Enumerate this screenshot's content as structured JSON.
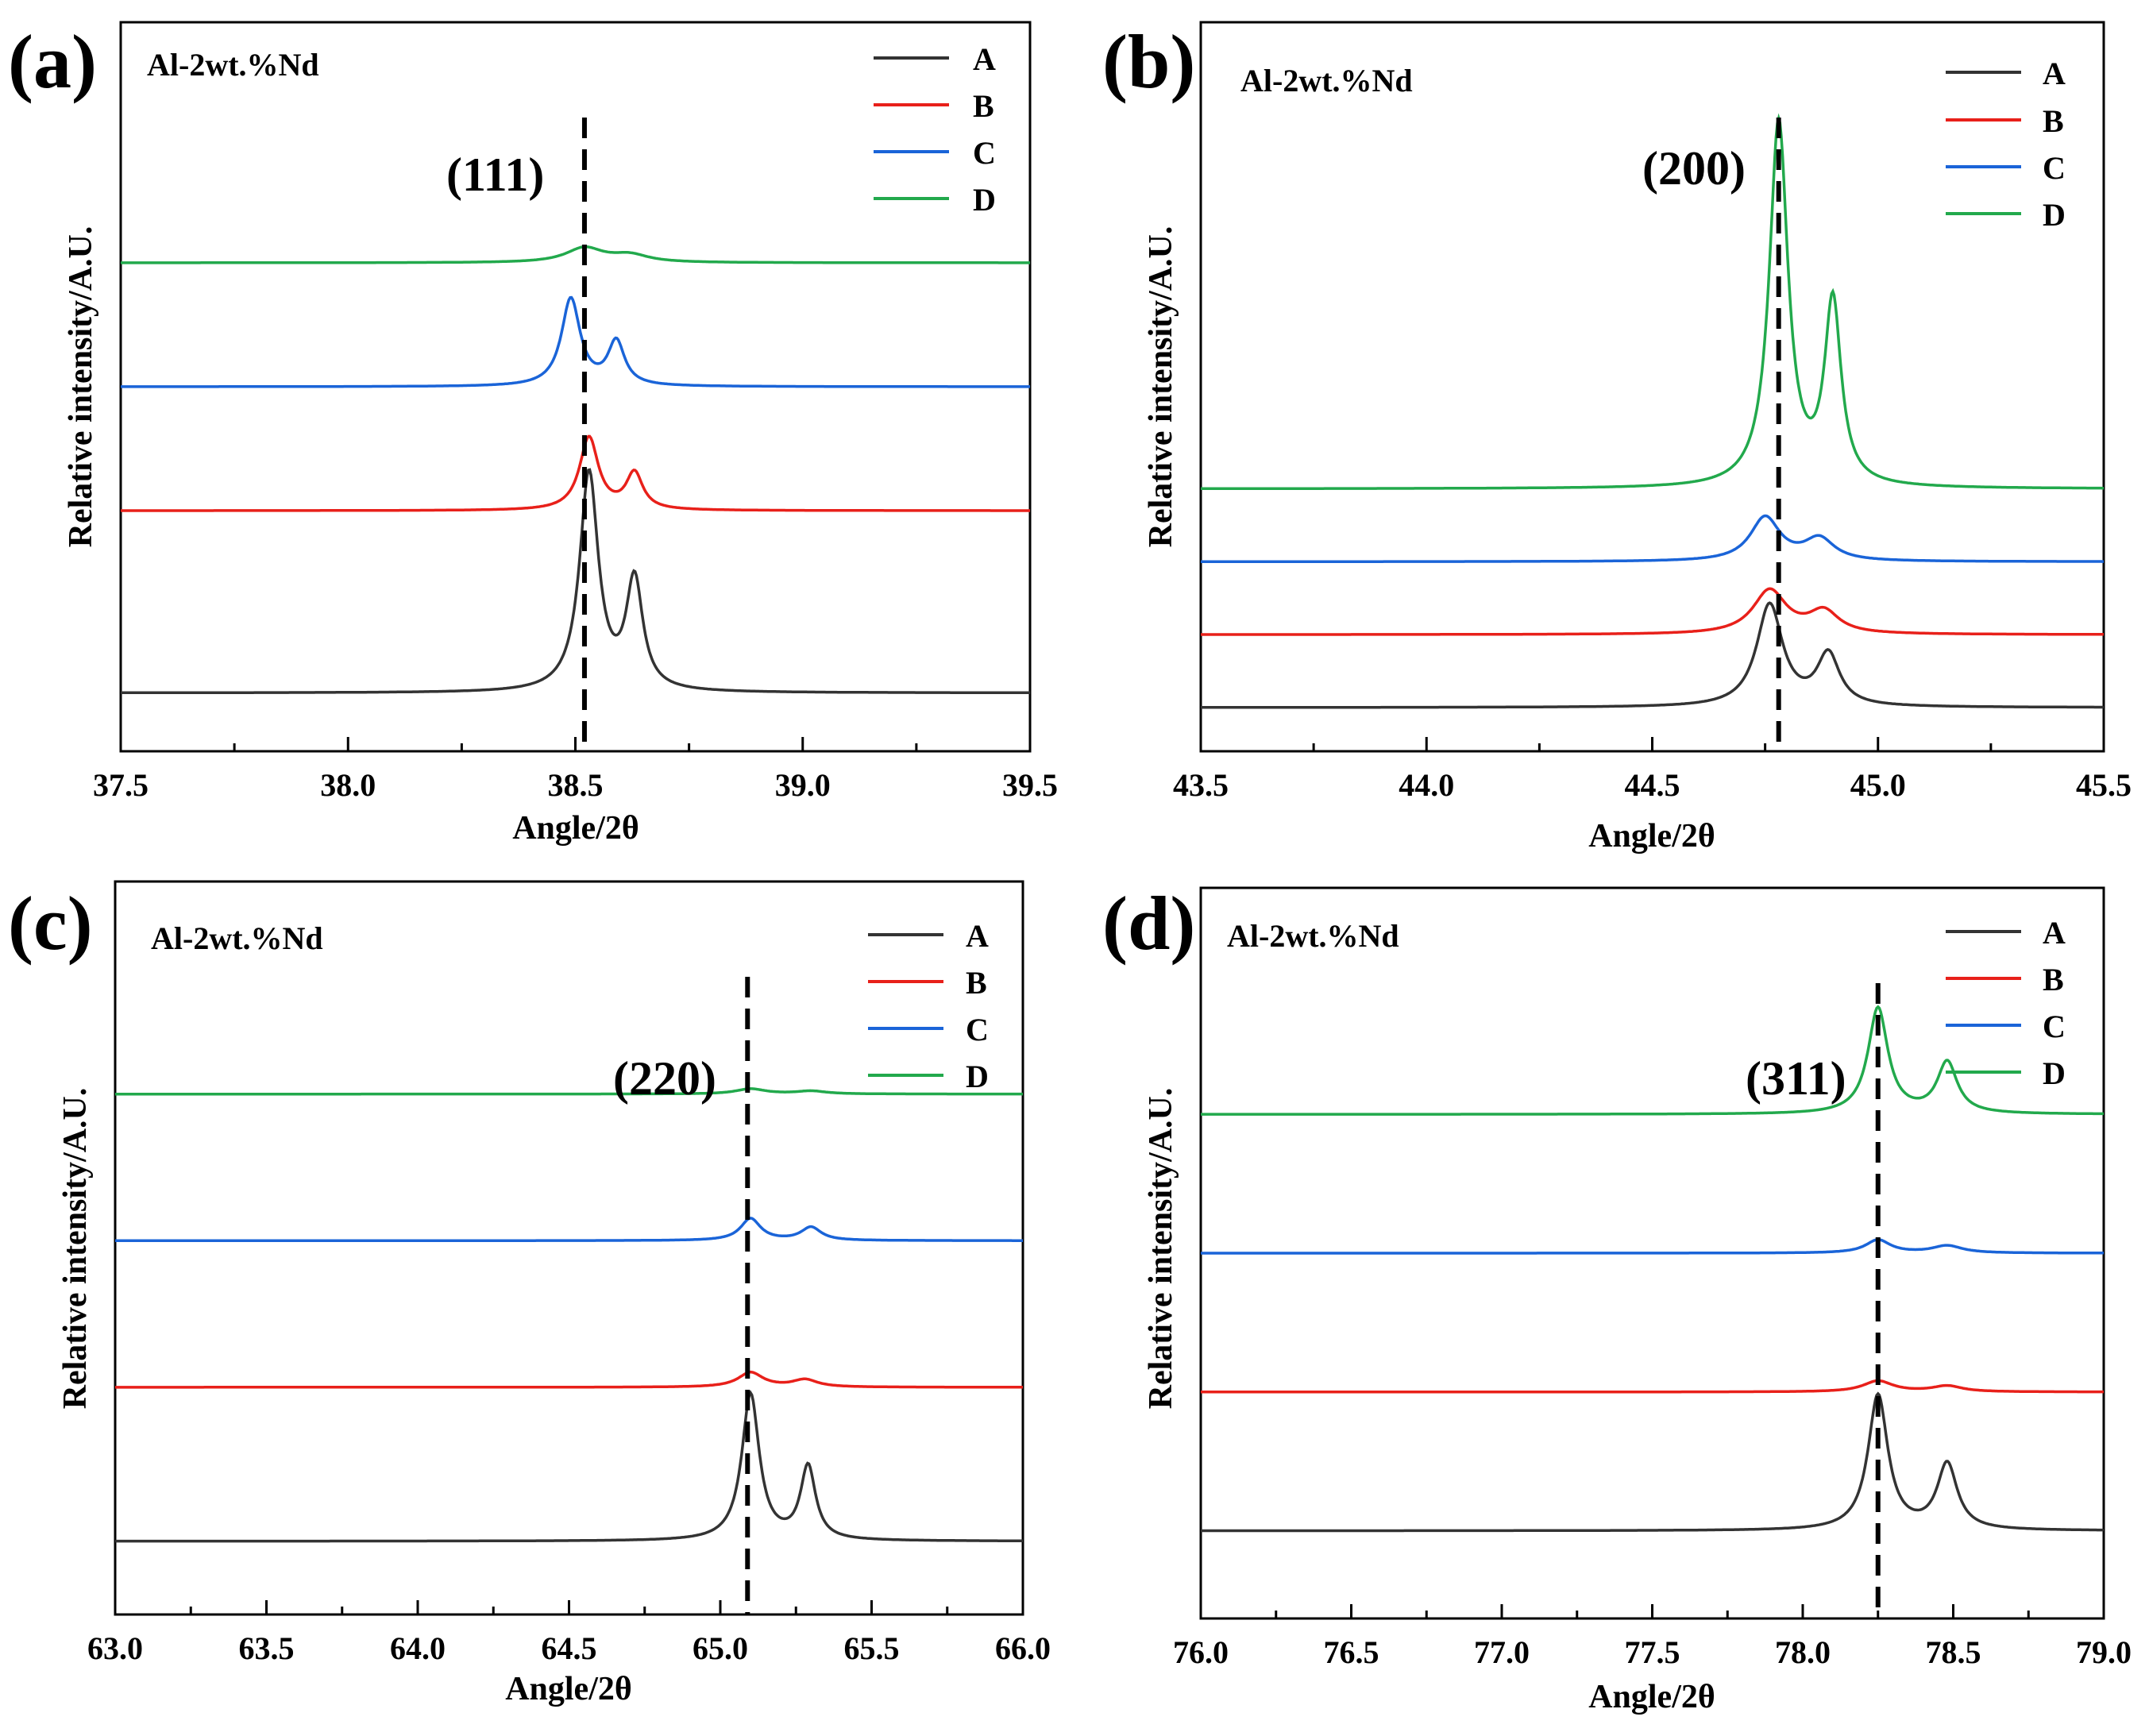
{
  "chart_data": [
    {
      "panel_label": "(a)",
      "type": "line",
      "title": "Al-2wt.%Nd",
      "xlabel": "Angle/2θ",
      "ylabel": "Relative intensity/A.U.",
      "xlim": [
        37.5,
        39.5
      ],
      "ylim": [
        0,
        1.0
      ],
      "x_ticks": [
        "37.5",
        "38.0",
        "38.5",
        "39.0",
        "39.5"
      ],
      "peak_annotation": "(111)",
      "reference_line_x": 38.52,
      "legend_position": "top-right",
      "series": [
        {
          "name": "A",
          "color": "#333333",
          "baseline": 0.08,
          "peaks": [
            [
              38.53,
              0.3,
              0.025
            ],
            [
              38.63,
              0.15,
              0.022
            ]
          ]
        },
        {
          "name": "B",
          "color": "#e8201a",
          "baseline": 0.33,
          "peaks": [
            [
              38.53,
              0.1,
              0.025
            ],
            [
              38.63,
              0.05,
              0.022
            ]
          ]
        },
        {
          "name": "C",
          "color": "#1a64d8",
          "baseline": 0.5,
          "peaks": [
            [
              38.49,
              0.12,
              0.025
            ],
            [
              38.59,
              0.06,
              0.022
            ]
          ]
        },
        {
          "name": "D",
          "color": "#22a94c",
          "baseline": 0.67,
          "peaks": [
            [
              38.52,
              0.02,
              0.05
            ],
            [
              38.62,
              0.01,
              0.05
            ]
          ]
        }
      ]
    },
    {
      "panel_label": "(b)",
      "type": "line",
      "title": "Al-2wt.%Nd",
      "xlabel": "Angle/2θ",
      "ylabel": "Relative intensity/A.U.",
      "xlim": [
        43.5,
        45.5
      ],
      "ylim": [
        0,
        1.0
      ],
      "x_ticks": [
        "43.5",
        "44.0",
        "44.5",
        "45.0",
        "45.5"
      ],
      "peak_annotation": "(200)",
      "reference_line_x": 44.78,
      "legend_position": "top-right",
      "series": [
        {
          "name": "A",
          "color": "#333333",
          "baseline": 0.06,
          "peaks": [
            [
              44.76,
              0.14,
              0.035
            ],
            [
              44.89,
              0.07,
              0.03
            ]
          ]
        },
        {
          "name": "B",
          "color": "#e8201a",
          "baseline": 0.16,
          "peaks": [
            [
              44.76,
              0.06,
              0.045
            ],
            [
              44.88,
              0.03,
              0.04
            ]
          ]
        },
        {
          "name": "C",
          "color": "#1a64d8",
          "baseline": 0.26,
          "peaks": [
            [
              44.75,
              0.06,
              0.04
            ],
            [
              44.87,
              0.03,
              0.04
            ]
          ]
        },
        {
          "name": "D",
          "color": "#22a94c",
          "baseline": 0.36,
          "peaks": [
            [
              44.78,
              0.5,
              0.025
            ],
            [
              44.9,
              0.25,
              0.022
            ]
          ]
        }
      ]
    },
    {
      "panel_label": "(c)",
      "type": "line",
      "title": "Al-2wt.%Nd",
      "xlabel": "Angle/2θ",
      "ylabel": "Relative intensity/A.U.",
      "xlim": [
        63.0,
        66.0
      ],
      "ylim": [
        0,
        1.0
      ],
      "x_ticks": [
        "63.0",
        "63.5",
        "64.0",
        "64.5",
        "65.0",
        "65.5",
        "66.0"
      ],
      "peak_annotation": "(220)",
      "reference_line_x": 65.09,
      "legend_position": "top-right",
      "series": [
        {
          "name": "A",
          "color": "#333333",
          "baseline": 0.1,
          "peaks": [
            [
              65.1,
              0.2,
              0.035
            ],
            [
              65.29,
              0.1,
              0.03
            ]
          ]
        },
        {
          "name": "B",
          "color": "#e8201a",
          "baseline": 0.31,
          "peaks": [
            [
              65.1,
              0.02,
              0.05
            ],
            [
              65.28,
              0.01,
              0.05
            ]
          ]
        },
        {
          "name": "C",
          "color": "#1a64d8",
          "baseline": 0.51,
          "peaks": [
            [
              65.1,
              0.03,
              0.04
            ],
            [
              65.3,
              0.018,
              0.04
            ]
          ]
        },
        {
          "name": "D",
          "color": "#22a94c",
          "baseline": 0.71,
          "peaks": [
            [
              65.1,
              0.007,
              0.06
            ],
            [
              65.3,
              0.004,
              0.06
            ]
          ]
        }
      ]
    },
    {
      "panel_label": "(d)",
      "type": "line",
      "title": "Al-2wt.%Nd",
      "xlabel": "Angle/2θ",
      "ylabel": "Relative intensity/A.U.",
      "xlim": [
        76.0,
        79.0
      ],
      "ylim": [
        0,
        1.0
      ],
      "x_ticks": [
        "76.0",
        "76.5",
        "77.0",
        "77.5",
        "78.0",
        "78.5",
        "79.0"
      ],
      "peak_annotation": "(311)",
      "reference_line_x": 78.25,
      "legend_position": "top-right",
      "series": [
        {
          "name": "A",
          "color": "#333333",
          "baseline": 0.12,
          "peaks": [
            [
              78.25,
              0.185,
              0.04
            ],
            [
              78.48,
              0.09,
              0.04
            ]
          ]
        },
        {
          "name": "B",
          "color": "#e8201a",
          "baseline": 0.31,
          "peaks": [
            [
              78.25,
              0.015,
              0.06
            ],
            [
              78.48,
              0.008,
              0.06
            ]
          ]
        },
        {
          "name": "C",
          "color": "#1a64d8",
          "baseline": 0.5,
          "peaks": [
            [
              78.25,
              0.018,
              0.05
            ],
            [
              78.48,
              0.01,
              0.06
            ]
          ]
        },
        {
          "name": "D",
          "color": "#22a94c",
          "baseline": 0.69,
          "peaks": [
            [
              78.25,
              0.145,
              0.04
            ],
            [
              78.48,
              0.07,
              0.04
            ]
          ]
        }
      ]
    }
  ]
}
